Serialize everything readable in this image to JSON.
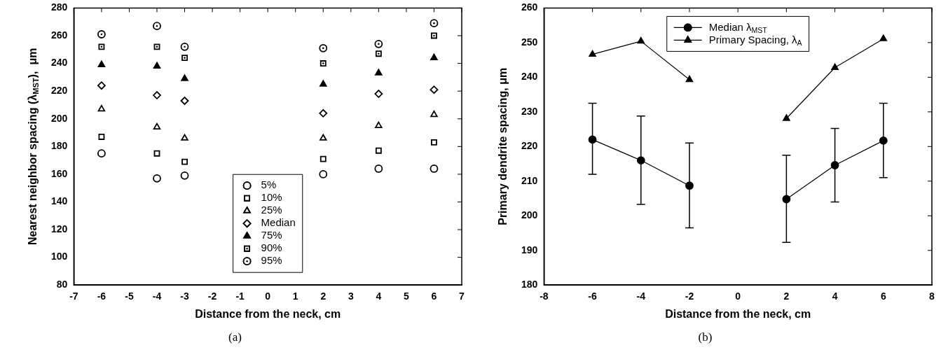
{
  "chart_data": [
    {
      "type": "scatter",
      "xlabel": "Distance from the neck, cm",
      "ylabel": "Nearest neighbor spacing (λ$_{MST}$),  μm",
      "annotations": [
        "(a)"
      ],
      "x": [
        -6,
        -4,
        -3,
        2,
        4,
        6
      ],
      "xlim": [
        -7,
        7
      ],
      "xticks": [
        -7,
        -6,
        -5,
        -4,
        -3,
        -2,
        -1,
        0,
        1,
        2,
        3,
        4,
        5,
        6,
        7
      ],
      "ylim": [
        80,
        280
      ],
      "yticks": [
        80,
        100,
        120,
        140,
        160,
        180,
        200,
        220,
        240,
        260,
        280
      ],
      "grid": false,
      "legend": "bottom center",
      "series": [
        {
          "name": "5%",
          "color": "#000000",
          "marker": "circle",
          "values": [
            175,
            157,
            159,
            160,
            164,
            164
          ]
        },
        {
          "name": "10%",
          "color": "#000000",
          "marker": "square",
          "values": [
            187,
            175,
            169,
            171,
            177,
            183
          ]
        },
        {
          "name": "25%",
          "color": "#000000",
          "marker": "triangle",
          "values": [
            207,
            194,
            186,
            186,
            195,
            203
          ]
        },
        {
          "name": "Median",
          "color": "#000000",
          "marker": "diamond",
          "values": [
            224,
            217,
            213,
            204,
            218,
            221
          ]
        },
        {
          "name": "75%",
          "color": "#000000",
          "marker": "triangle-filled",
          "values": [
            239,
            238,
            229,
            225,
            233,
            244
          ]
        },
        {
          "name": "90%",
          "color": "#000000",
          "marker": "square-dot",
          "values": [
            252,
            252,
            244,
            240,
            247,
            260
          ]
        },
        {
          "name": "95%",
          "color": "#000000",
          "marker": "circle-dot",
          "values": [
            261,
            267,
            252,
            251,
            254,
            269
          ]
        }
      ]
    },
    {
      "type": "line",
      "xlabel": "Distance from the neck, cm",
      "ylabel": "Primary dendrite spacing, μm",
      "annotations": [
        "(b)"
      ],
      "xlim": [
        -8,
        8
      ],
      "xticks": [
        -8,
        -6,
        -4,
        -2,
        0,
        2,
        4,
        6,
        8
      ],
      "ylim": [
        180,
        260
      ],
      "yticks": [
        180,
        190,
        200,
        210,
        220,
        230,
        240,
        250,
        260
      ],
      "grid": false,
      "legend": "top center",
      "series": [
        {
          "name": "Median λ$_{MST}$",
          "color": "#000000",
          "marker": "circle-filled",
          "x": [
            -6,
            -4,
            -2,
            0,
            2,
            4,
            6
          ],
          "values": [
            222,
            216,
            208.7,
            null,
            204.8,
            214.6,
            221.7
          ],
          "errors": [
            [
              212,
              232.5
            ],
            [
              203.3,
              228.8
            ],
            [
              196.5,
              221
            ],
            null,
            [
              192.3,
              217.5
            ],
            [
              204,
              225.2
            ],
            [
              211,
              232.5
            ]
          ]
        },
        {
          "name": "Primary Spacing, λ$_{A}$",
          "color": "#000000",
          "marker": "triangle-filled",
          "x": [
            -6,
            -4,
            -2,
            0,
            2,
            4,
            6
          ],
          "values": [
            246.6,
            250.4,
            239.3,
            null,
            228.1,
            242.8,
            251.1
          ]
        }
      ]
    }
  ]
}
